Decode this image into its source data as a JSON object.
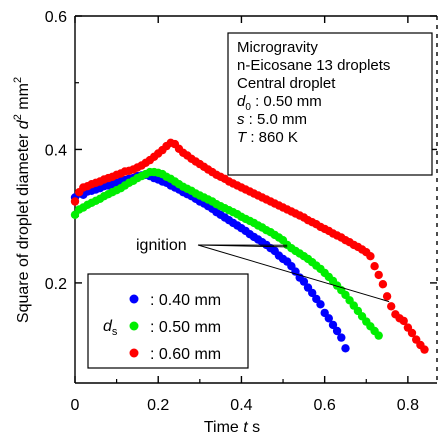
{
  "chart_data": {
    "type": "scatter",
    "xlabel": "Time",
    "xlabel_symbol": "t",
    "xlabel_unit": "s",
    "ylabel": "Square of droplet diameter",
    "ylabel_symbol": "d",
    "ylabel_exponent": "2",
    "ylabel_unit": "mm",
    "ylabel_unit_exponent": "2",
    "xlim": [
      0,
      0.87
    ],
    "ylim": [
      0.05,
      0.6
    ],
    "x_ticks": [
      "0",
      "0.2",
      "0.4",
      "0.6",
      "0.8"
    ],
    "x_tick_values": [
      0,
      0.2,
      0.4,
      0.6,
      0.8
    ],
    "y_ticks": [
      "0.2",
      "0.4",
      "0.6"
    ],
    "y_tick_values": [
      0.2,
      0.4,
      0.6
    ],
    "info_box": {
      "line1": "Microgravity",
      "line2": "n-Eicosane 13 droplets",
      "line3": "Central droplet",
      "d0_symbol": "d",
      "d0_subscript": "0",
      "d0_value": " : 0.50 mm",
      "s_symbol": "s",
      "s_value": " : 5.0 mm",
      "T_symbol": "T",
      "T_value": " : 860 K"
    },
    "annotation": "ignition",
    "ignition_points": [
      [
        0.51,
        0.254
      ],
      [
        0.51,
        0.2565
      ],
      [
        0.755,
        0.172
      ]
    ],
    "legend": {
      "symbol": "d",
      "subscript": "s",
      "placement": "bottom-left",
      "entries": [
        ": 0.40 mm",
        ": 0.50 mm",
        ": 0.60 mm"
      ]
    },
    "colors": [
      "#0000ff",
      "#00ee00",
      "#ff0000"
    ],
    "series": [
      {
        "name": ": 0.40 mm",
        "color": "#0000ff",
        "x": [
          0.0,
          0.01,
          0.02,
          0.03,
          0.04,
          0.05,
          0.06,
          0.07,
          0.08,
          0.09,
          0.1,
          0.11,
          0.12,
          0.13,
          0.14,
          0.15,
          0.16,
          0.17,
          0.18,
          0.19,
          0.2,
          0.21,
          0.22,
          0.23,
          0.24,
          0.25,
          0.26,
          0.27,
          0.28,
          0.29,
          0.3,
          0.31,
          0.32,
          0.33,
          0.34,
          0.35,
          0.36,
          0.37,
          0.38,
          0.39,
          0.4,
          0.41,
          0.42,
          0.43,
          0.44,
          0.45,
          0.46,
          0.47,
          0.48,
          0.49,
          0.5,
          0.51,
          0.52,
          0.53,
          0.54,
          0.55,
          0.56,
          0.57,
          0.58,
          0.59,
          0.6,
          0.61,
          0.62,
          0.63,
          0.64,
          0.65
        ],
        "y": [
          0.328,
          0.334,
          0.332,
          0.337,
          0.338,
          0.34,
          0.342,
          0.345,
          0.346,
          0.348,
          0.35,
          0.352,
          0.354,
          0.356,
          0.357,
          0.36,
          0.361,
          0.362,
          0.36,
          0.357,
          0.355,
          0.352,
          0.35,
          0.346,
          0.343,
          0.34,
          0.336,
          0.333,
          0.33,
          0.326,
          0.322,
          0.319,
          0.315,
          0.311,
          0.306,
          0.302,
          0.298,
          0.294,
          0.29,
          0.286,
          0.282,
          0.278,
          0.273,
          0.269,
          0.265,
          0.261,
          0.257,
          0.252,
          0.248,
          0.241,
          0.236,
          0.232,
          0.225,
          0.217,
          0.208,
          0.202,
          0.193,
          0.185,
          0.176,
          0.168,
          0.155,
          0.147,
          0.137,
          0.128,
          0.118,
          0.102
        ]
      },
      {
        "name": ": 0.50 mm",
        "color": "#00ee00",
        "x": [
          0.0,
          0.01,
          0.02,
          0.03,
          0.04,
          0.05,
          0.06,
          0.07,
          0.08,
          0.09,
          0.1,
          0.11,
          0.12,
          0.13,
          0.14,
          0.15,
          0.16,
          0.17,
          0.18,
          0.19,
          0.2,
          0.21,
          0.22,
          0.23,
          0.24,
          0.25,
          0.26,
          0.27,
          0.28,
          0.29,
          0.3,
          0.31,
          0.32,
          0.33,
          0.34,
          0.35,
          0.36,
          0.37,
          0.38,
          0.39,
          0.4,
          0.41,
          0.42,
          0.43,
          0.44,
          0.45,
          0.46,
          0.47,
          0.48,
          0.49,
          0.5,
          0.51,
          0.52,
          0.53,
          0.54,
          0.55,
          0.56,
          0.57,
          0.58,
          0.59,
          0.6,
          0.61,
          0.62,
          0.63,
          0.64,
          0.65,
          0.66,
          0.67,
          0.68,
          0.69,
          0.7,
          0.71,
          0.72,
          0.73
        ],
        "y": [
          0.302,
          0.31,
          0.313,
          0.317,
          0.32,
          0.323,
          0.326,
          0.33,
          0.333,
          0.336,
          0.339,
          0.342,
          0.346,
          0.35,
          0.353,
          0.357,
          0.36,
          0.363,
          0.366,
          0.366,
          0.365,
          0.363,
          0.359,
          0.356,
          0.352,
          0.348,
          0.344,
          0.341,
          0.338,
          0.334,
          0.331,
          0.328,
          0.325,
          0.322,
          0.318,
          0.315,
          0.312,
          0.309,
          0.306,
          0.303,
          0.299,
          0.296,
          0.293,
          0.29,
          0.286,
          0.283,
          0.279,
          0.276,
          0.272,
          0.268,
          0.264,
          0.257,
          0.252,
          0.248,
          0.244,
          0.24,
          0.236,
          0.231,
          0.226,
          0.221,
          0.215,
          0.209,
          0.203,
          0.196,
          0.189,
          0.182,
          0.174,
          0.166,
          0.158,
          0.15,
          0.142,
          0.135,
          0.128,
          0.121
        ]
      },
      {
        "name": ": 0.60 mm",
        "color": "#ff0000",
        "x": [
          0.0,
          0.01,
          0.02,
          0.03,
          0.04,
          0.05,
          0.06,
          0.07,
          0.08,
          0.09,
          0.1,
          0.11,
          0.12,
          0.13,
          0.14,
          0.15,
          0.16,
          0.17,
          0.18,
          0.19,
          0.2,
          0.21,
          0.22,
          0.23,
          0.24,
          0.25,
          0.26,
          0.27,
          0.28,
          0.29,
          0.3,
          0.31,
          0.32,
          0.33,
          0.34,
          0.35,
          0.36,
          0.37,
          0.38,
          0.39,
          0.4,
          0.41,
          0.42,
          0.43,
          0.44,
          0.45,
          0.46,
          0.47,
          0.48,
          0.49,
          0.5,
          0.51,
          0.52,
          0.53,
          0.54,
          0.55,
          0.56,
          0.57,
          0.58,
          0.59,
          0.6,
          0.61,
          0.62,
          0.63,
          0.64,
          0.65,
          0.66,
          0.67,
          0.68,
          0.69,
          0.7,
          0.71,
          0.72,
          0.73,
          0.74,
          0.75,
          0.76,
          0.77,
          0.78,
          0.79,
          0.8,
          0.81,
          0.82,
          0.83,
          0.84
        ],
        "y": [
          0.322,
          0.336,
          0.343,
          0.345,
          0.348,
          0.35,
          0.352,
          0.355,
          0.357,
          0.359,
          0.362,
          0.364,
          0.367,
          0.368,
          0.37,
          0.373,
          0.376,
          0.38,
          0.384,
          0.389,
          0.394,
          0.399,
          0.405,
          0.41,
          0.408,
          0.401,
          0.395,
          0.391,
          0.386,
          0.382,
          0.378,
          0.374,
          0.37,
          0.366,
          0.362,
          0.359,
          0.356,
          0.352,
          0.349,
          0.346,
          0.343,
          0.34,
          0.337,
          0.334,
          0.331,
          0.328,
          0.325,
          0.322,
          0.319,
          0.316,
          0.313,
          0.31,
          0.307,
          0.304,
          0.301,
          0.298,
          0.294,
          0.291,
          0.288,
          0.284,
          0.281,
          0.278,
          0.274,
          0.271,
          0.268,
          0.264,
          0.261,
          0.257,
          0.254,
          0.25,
          0.246,
          0.24,
          0.225,
          0.212,
          0.198,
          0.18,
          0.165,
          0.153,
          0.147,
          0.143,
          0.133,
          0.125,
          0.115,
          0.107,
          0.1
        ]
      }
    ]
  }
}
